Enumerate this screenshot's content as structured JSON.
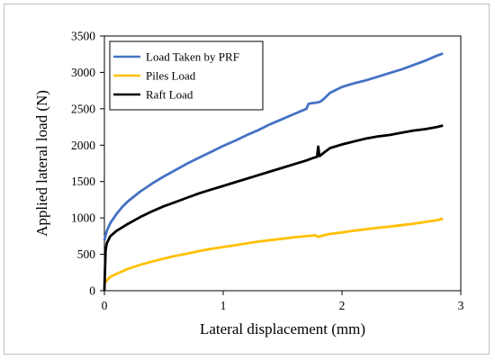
{
  "chart_data": {
    "type": "line",
    "title": "",
    "xlabel": "Lateral displacement (mm)",
    "ylabel": "Applied lateral load (N)",
    "xlim": [
      0,
      3
    ],
    "ylim": [
      0,
      3500
    ],
    "xticks": [
      "0",
      "1",
      "2",
      "3"
    ],
    "yticks": [
      "0",
      "500",
      "1000",
      "1500",
      "2000",
      "2500",
      "3000",
      "3500"
    ],
    "grid": false,
    "legend_position": "top-left",
    "series": [
      {
        "name": "Load Taken by PRF",
        "color": "#4472C4",
        "points": [
          [
            0,
            690
          ],
          [
            0.02,
            820
          ],
          [
            0.05,
            930
          ],
          [
            0.1,
            1050
          ],
          [
            0.15,
            1150
          ],
          [
            0.2,
            1230
          ],
          [
            0.3,
            1360
          ],
          [
            0.4,
            1470
          ],
          [
            0.5,
            1570
          ],
          [
            0.6,
            1660
          ],
          [
            0.7,
            1750
          ],
          [
            0.8,
            1830
          ],
          [
            0.9,
            1910
          ],
          [
            1.0,
            1990
          ],
          [
            1.1,
            2060
          ],
          [
            1.2,
            2140
          ],
          [
            1.3,
            2210
          ],
          [
            1.4,
            2290
          ],
          [
            1.5,
            2360
          ],
          [
            1.6,
            2430
          ],
          [
            1.7,
            2500
          ],
          [
            1.72,
            2570
          ],
          [
            1.8,
            2590
          ],
          [
            1.82,
            2600
          ],
          [
            1.85,
            2640
          ],
          [
            1.9,
            2720
          ],
          [
            2.0,
            2800
          ],
          [
            2.1,
            2850
          ],
          [
            2.2,
            2890
          ],
          [
            2.3,
            2940
          ],
          [
            2.4,
            2990
          ],
          [
            2.5,
            3040
          ],
          [
            2.6,
            3100
          ],
          [
            2.7,
            3160
          ],
          [
            2.8,
            3230
          ],
          [
            2.85,
            3260
          ]
        ]
      },
      {
        "name": "Piles Load",
        "color": "#FFC000",
        "points": [
          [
            0,
            90
          ],
          [
            0.01,
            120
          ],
          [
            0.03,
            160
          ],
          [
            0.05,
            190
          ],
          [
            0.1,
            230
          ],
          [
            0.2,
            300
          ],
          [
            0.3,
            355
          ],
          [
            0.4,
            400
          ],
          [
            0.5,
            440
          ],
          [
            0.6,
            480
          ],
          [
            0.7,
            510
          ],
          [
            0.8,
            545
          ],
          [
            0.9,
            575
          ],
          [
            1.0,
            600
          ],
          [
            1.1,
            625
          ],
          [
            1.2,
            650
          ],
          [
            1.3,
            675
          ],
          [
            1.4,
            695
          ],
          [
            1.5,
            715
          ],
          [
            1.6,
            735
          ],
          [
            1.7,
            750
          ],
          [
            1.78,
            760
          ],
          [
            1.8,
            740
          ],
          [
            1.82,
            750
          ],
          [
            1.9,
            780
          ],
          [
            2.0,
            800
          ],
          [
            2.1,
            825
          ],
          [
            2.2,
            845
          ],
          [
            2.3,
            865
          ],
          [
            2.4,
            880
          ],
          [
            2.5,
            900
          ],
          [
            2.6,
            920
          ],
          [
            2.7,
            945
          ],
          [
            2.8,
            970
          ],
          [
            2.85,
            990
          ]
        ]
      },
      {
        "name": "Raft Load",
        "color": "#000000",
        "points": [
          [
            0,
            0
          ],
          [
            0.005,
            300
          ],
          [
            0.01,
            550
          ],
          [
            0.02,
            650
          ],
          [
            0.05,
            750
          ],
          [
            0.1,
            820
          ],
          [
            0.2,
            920
          ],
          [
            0.3,
            1010
          ],
          [
            0.4,
            1090
          ],
          [
            0.5,
            1160
          ],
          [
            0.6,
            1220
          ],
          [
            0.7,
            1280
          ],
          [
            0.8,
            1340
          ],
          [
            0.9,
            1390
          ],
          [
            1.0,
            1440
          ],
          [
            1.1,
            1490
          ],
          [
            1.2,
            1540
          ],
          [
            1.3,
            1590
          ],
          [
            1.4,
            1640
          ],
          [
            1.5,
            1690
          ],
          [
            1.6,
            1740
          ],
          [
            1.7,
            1790
          ],
          [
            1.75,
            1820
          ],
          [
            1.79,
            1840
          ],
          [
            1.8,
            1980
          ],
          [
            1.81,
            1850
          ],
          [
            1.82,
            1860
          ],
          [
            1.85,
            1900
          ],
          [
            1.9,
            1960
          ],
          [
            2.0,
            2010
          ],
          [
            2.1,
            2050
          ],
          [
            2.2,
            2090
          ],
          [
            2.3,
            2120
          ],
          [
            2.4,
            2140
          ],
          [
            2.5,
            2170
          ],
          [
            2.6,
            2200
          ],
          [
            2.7,
            2220
          ],
          [
            2.8,
            2250
          ],
          [
            2.85,
            2270
          ]
        ]
      }
    ]
  }
}
